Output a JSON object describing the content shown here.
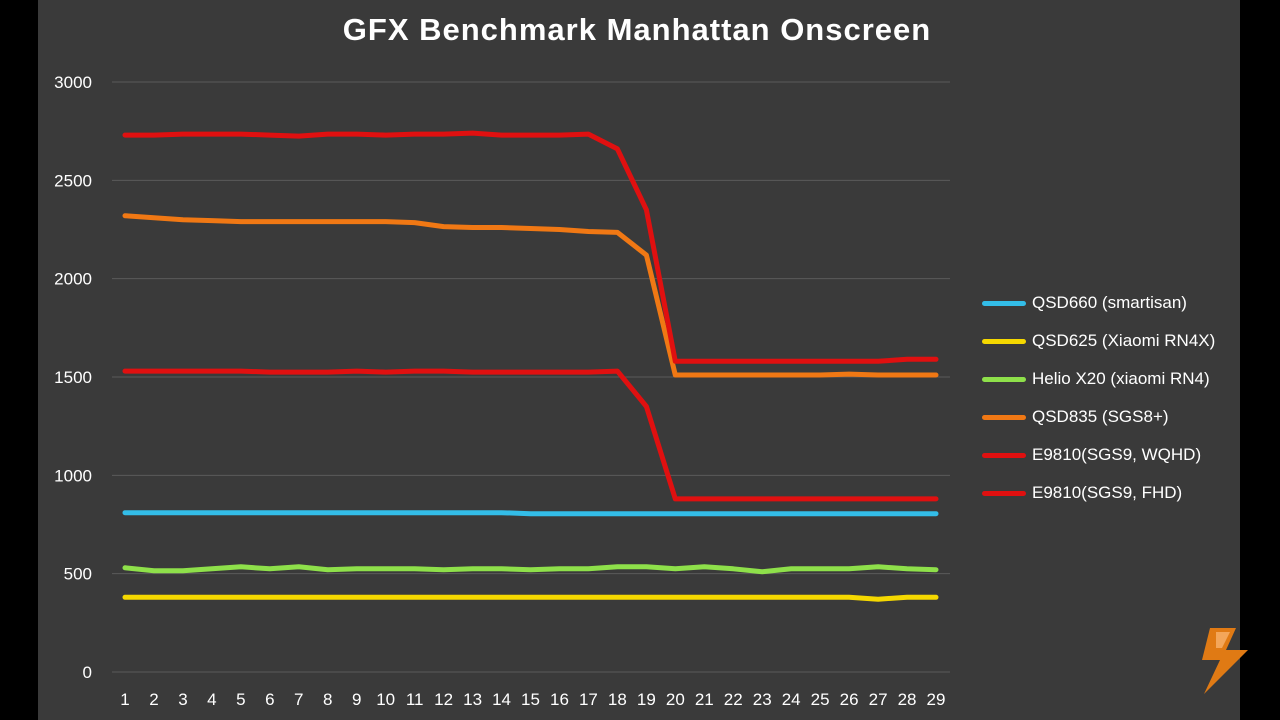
{
  "chart_data": {
    "type": "line",
    "title": "GFX Benchmark Manhattan Onscreen",
    "xlabel": "",
    "ylabel": "",
    "x": [
      1,
      2,
      3,
      4,
      5,
      6,
      7,
      8,
      9,
      10,
      11,
      12,
      13,
      14,
      15,
      16,
      17,
      18,
      19,
      20,
      21,
      22,
      23,
      24,
      25,
      26,
      27,
      28,
      29
    ],
    "ylim": [
      0,
      3000
    ],
    "yticks": [
      0,
      500,
      1000,
      1500,
      2000,
      2500,
      3000
    ],
    "grid": true,
    "legend_position": "right",
    "series": [
      {
        "name": "QSD660 (smartisan)",
        "color": "#33bde8",
        "values": [
          810,
          810,
          810,
          810,
          810,
          810,
          810,
          810,
          810,
          810,
          810,
          810,
          810,
          810,
          805,
          805,
          805,
          805,
          805,
          805,
          805,
          805,
          805,
          805,
          805,
          805,
          805,
          805,
          805
        ]
      },
      {
        "name": "QSD625 (Xiaomi RN4X)",
        "color": "#f5d800",
        "values": [
          380,
          380,
          380,
          380,
          380,
          380,
          380,
          380,
          380,
          380,
          380,
          380,
          380,
          380,
          380,
          380,
          380,
          380,
          380,
          380,
          380,
          380,
          380,
          380,
          380,
          380,
          370,
          380,
          380
        ]
      },
      {
        "name": "Helio X20 (xiaomi RN4)",
        "color": "#8ee04a",
        "values": [
          530,
          515,
          515,
          525,
          535,
          525,
          535,
          520,
          525,
          525,
          525,
          520,
          525,
          525,
          520,
          525,
          525,
          535,
          535,
          525,
          535,
          525,
          510,
          525,
          525,
          525,
          535,
          525,
          520
        ]
      },
      {
        "name": "QSD835 (SGS8+)",
        "color": "#f07814",
        "values": [
          2320,
          2310,
          2300,
          2295,
          2290,
          2290,
          2290,
          2290,
          2290,
          2290,
          2285,
          2265,
          2260,
          2260,
          2255,
          2250,
          2240,
          2235,
          2120,
          1510,
          1510,
          1510,
          1510,
          1510,
          1510,
          1515,
          1510,
          1510,
          1510
        ]
      },
      {
        "name": "E9810(SGS9, WQHD)",
        "color": "#e01010",
        "values": [
          1530,
          1530,
          1530,
          1530,
          1530,
          1525,
          1525,
          1525,
          1530,
          1525,
          1530,
          1530,
          1525,
          1525,
          1525,
          1525,
          1525,
          1530,
          1350,
          880,
          880,
          880,
          880,
          880,
          880,
          880,
          880,
          880,
          880
        ]
      },
      {
        "name": "E9810(SGS9, FHD)",
        "color": "#e01010",
        "values": [
          2730,
          2730,
          2735,
          2735,
          2735,
          2730,
          2725,
          2735,
          2735,
          2730,
          2735,
          2735,
          2740,
          2730,
          2730,
          2730,
          2735,
          2660,
          2350,
          1580,
          1580,
          1580,
          1580,
          1580,
          1580,
          1580,
          1580,
          1590,
          1590
        ]
      }
    ]
  }
}
